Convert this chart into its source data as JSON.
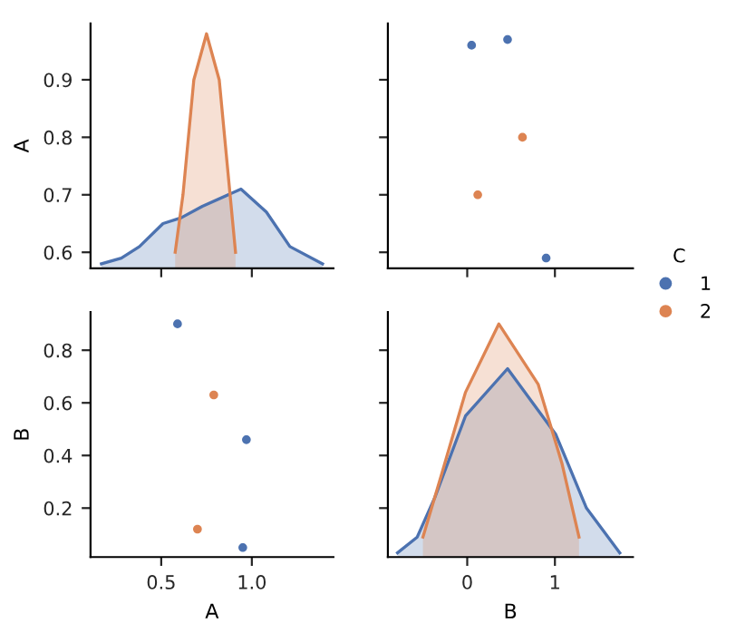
{
  "chart_data": [
    {
      "type": "area",
      "xlim": [
        0.11,
        1.45
      ],
      "xticks": [
        {
          "value": 0.5,
          "label": null
        },
        {
          "value": 1.0,
          "label": null
        }
      ],
      "ylim": [
        0.572,
        0.998
      ],
      "yticks": [
        0.6,
        0.7,
        0.8,
        0.9
      ],
      "ylabel": "A",
      "tick_labels": "y",
      "grid": false,
      "series": [
        {
          "color": "#4c72b0",
          "x": [
            0.17,
            0.28,
            0.38,
            0.51,
            0.61,
            0.727,
            0.94,
            1.08,
            1.21,
            1.39
          ],
          "values": [
            0.58,
            0.59,
            0.61,
            0.65,
            0.66,
            0.68,
            0.71,
            0.67,
            0.61,
            0.58
          ]
        },
        {
          "color": "#dd8452",
          "x": [
            0.577,
            0.62,
            0.68,
            0.75,
            0.82,
            0.88,
            0.91
          ],
          "values": [
            0.6,
            0.7,
            0.9,
            0.98,
            0.9,
            0.7,
            0.6
          ]
        }
      ]
    },
    {
      "type": "scatter",
      "xlim": [
        -0.905,
        1.89
      ],
      "xticks": [
        {
          "value": 0,
          "label": null
        },
        {
          "value": 1,
          "label": null
        }
      ],
      "ylim": [
        0.572,
        0.998
      ],
      "yticks": [
        {
          "value": 0.6,
          "label": null
        },
        {
          "value": 0.7,
          "label": null
        },
        {
          "value": 0.8,
          "label": null
        },
        {
          "value": 0.9,
          "label": null
        }
      ],
      "tick_labels": false,
      "grid": false,
      "legend": "right",
      "legend_title": "C",
      "marker": "circle",
      "series": [
        {
          "name": "1",
          "color": "#4c72b0",
          "x": [
            0.05,
            0.46,
            0.9
          ],
          "values": [
            0.96,
            0.97,
            0.59
          ]
        },
        {
          "name": "2",
          "color": "#dd8452",
          "x": [
            0.63,
            0.12
          ],
          "values": [
            0.8,
            0.7
          ]
        }
      ]
    },
    {
      "type": "scatter",
      "xlim": [
        0.11,
        1.45
      ],
      "xticks": [
        {
          "value": 0.5,
          "label": "0.5"
        },
        {
          "value": 1.0,
          "label": "1.0"
        }
      ],
      "ylim": [
        0.014,
        0.945
      ],
      "yticks": [
        0.2,
        0.4,
        0.6,
        0.8
      ],
      "xlabel": "A",
      "ylabel": "B",
      "grid": false,
      "marker": "circle",
      "series": [
        {
          "color": "#4c72b0",
          "x": [
            0.59,
            0.97,
            0.95
          ],
          "values": [
            0.9,
            0.46,
            0.05
          ]
        },
        {
          "color": "#dd8452",
          "x": [
            0.79,
            0.7
          ],
          "values": [
            0.63,
            0.12
          ]
        }
      ]
    },
    {
      "type": "area",
      "xlim": [
        -0.905,
        1.89
      ],
      "xticks": [
        {
          "value": 0,
          "label": "0"
        },
        {
          "value": 1,
          "label": "1"
        }
      ],
      "ylim": [
        0.014,
        0.945
      ],
      "yticks": [
        {
          "value": 0.2,
          "label": null
        },
        {
          "value": 0.4,
          "label": null
        },
        {
          "value": 0.6,
          "label": null
        },
        {
          "value": 0.8,
          "label": null
        }
      ],
      "xlabel": "B",
      "tick_labels": "x",
      "grid": false,
      "series": [
        {
          "color": "#4c72b0",
          "x": [
            -0.795,
            -0.57,
            -0.37,
            -0.02,
            0.46,
            1.01,
            1.36,
            1.74
          ],
          "values": [
            0.03,
            0.09,
            0.24,
            0.55,
            0.73,
            0.48,
            0.2,
            0.03
          ]
        },
        {
          "color": "#dd8452",
          "x": [
            -0.505,
            -0.3,
            -0.02,
            0.36,
            0.81,
            1.08,
            1.275
          ],
          "values": [
            0.09,
            0.32,
            0.64,
            0.9,
            0.67,
            0.37,
            0.09
          ]
        }
      ]
    }
  ]
}
